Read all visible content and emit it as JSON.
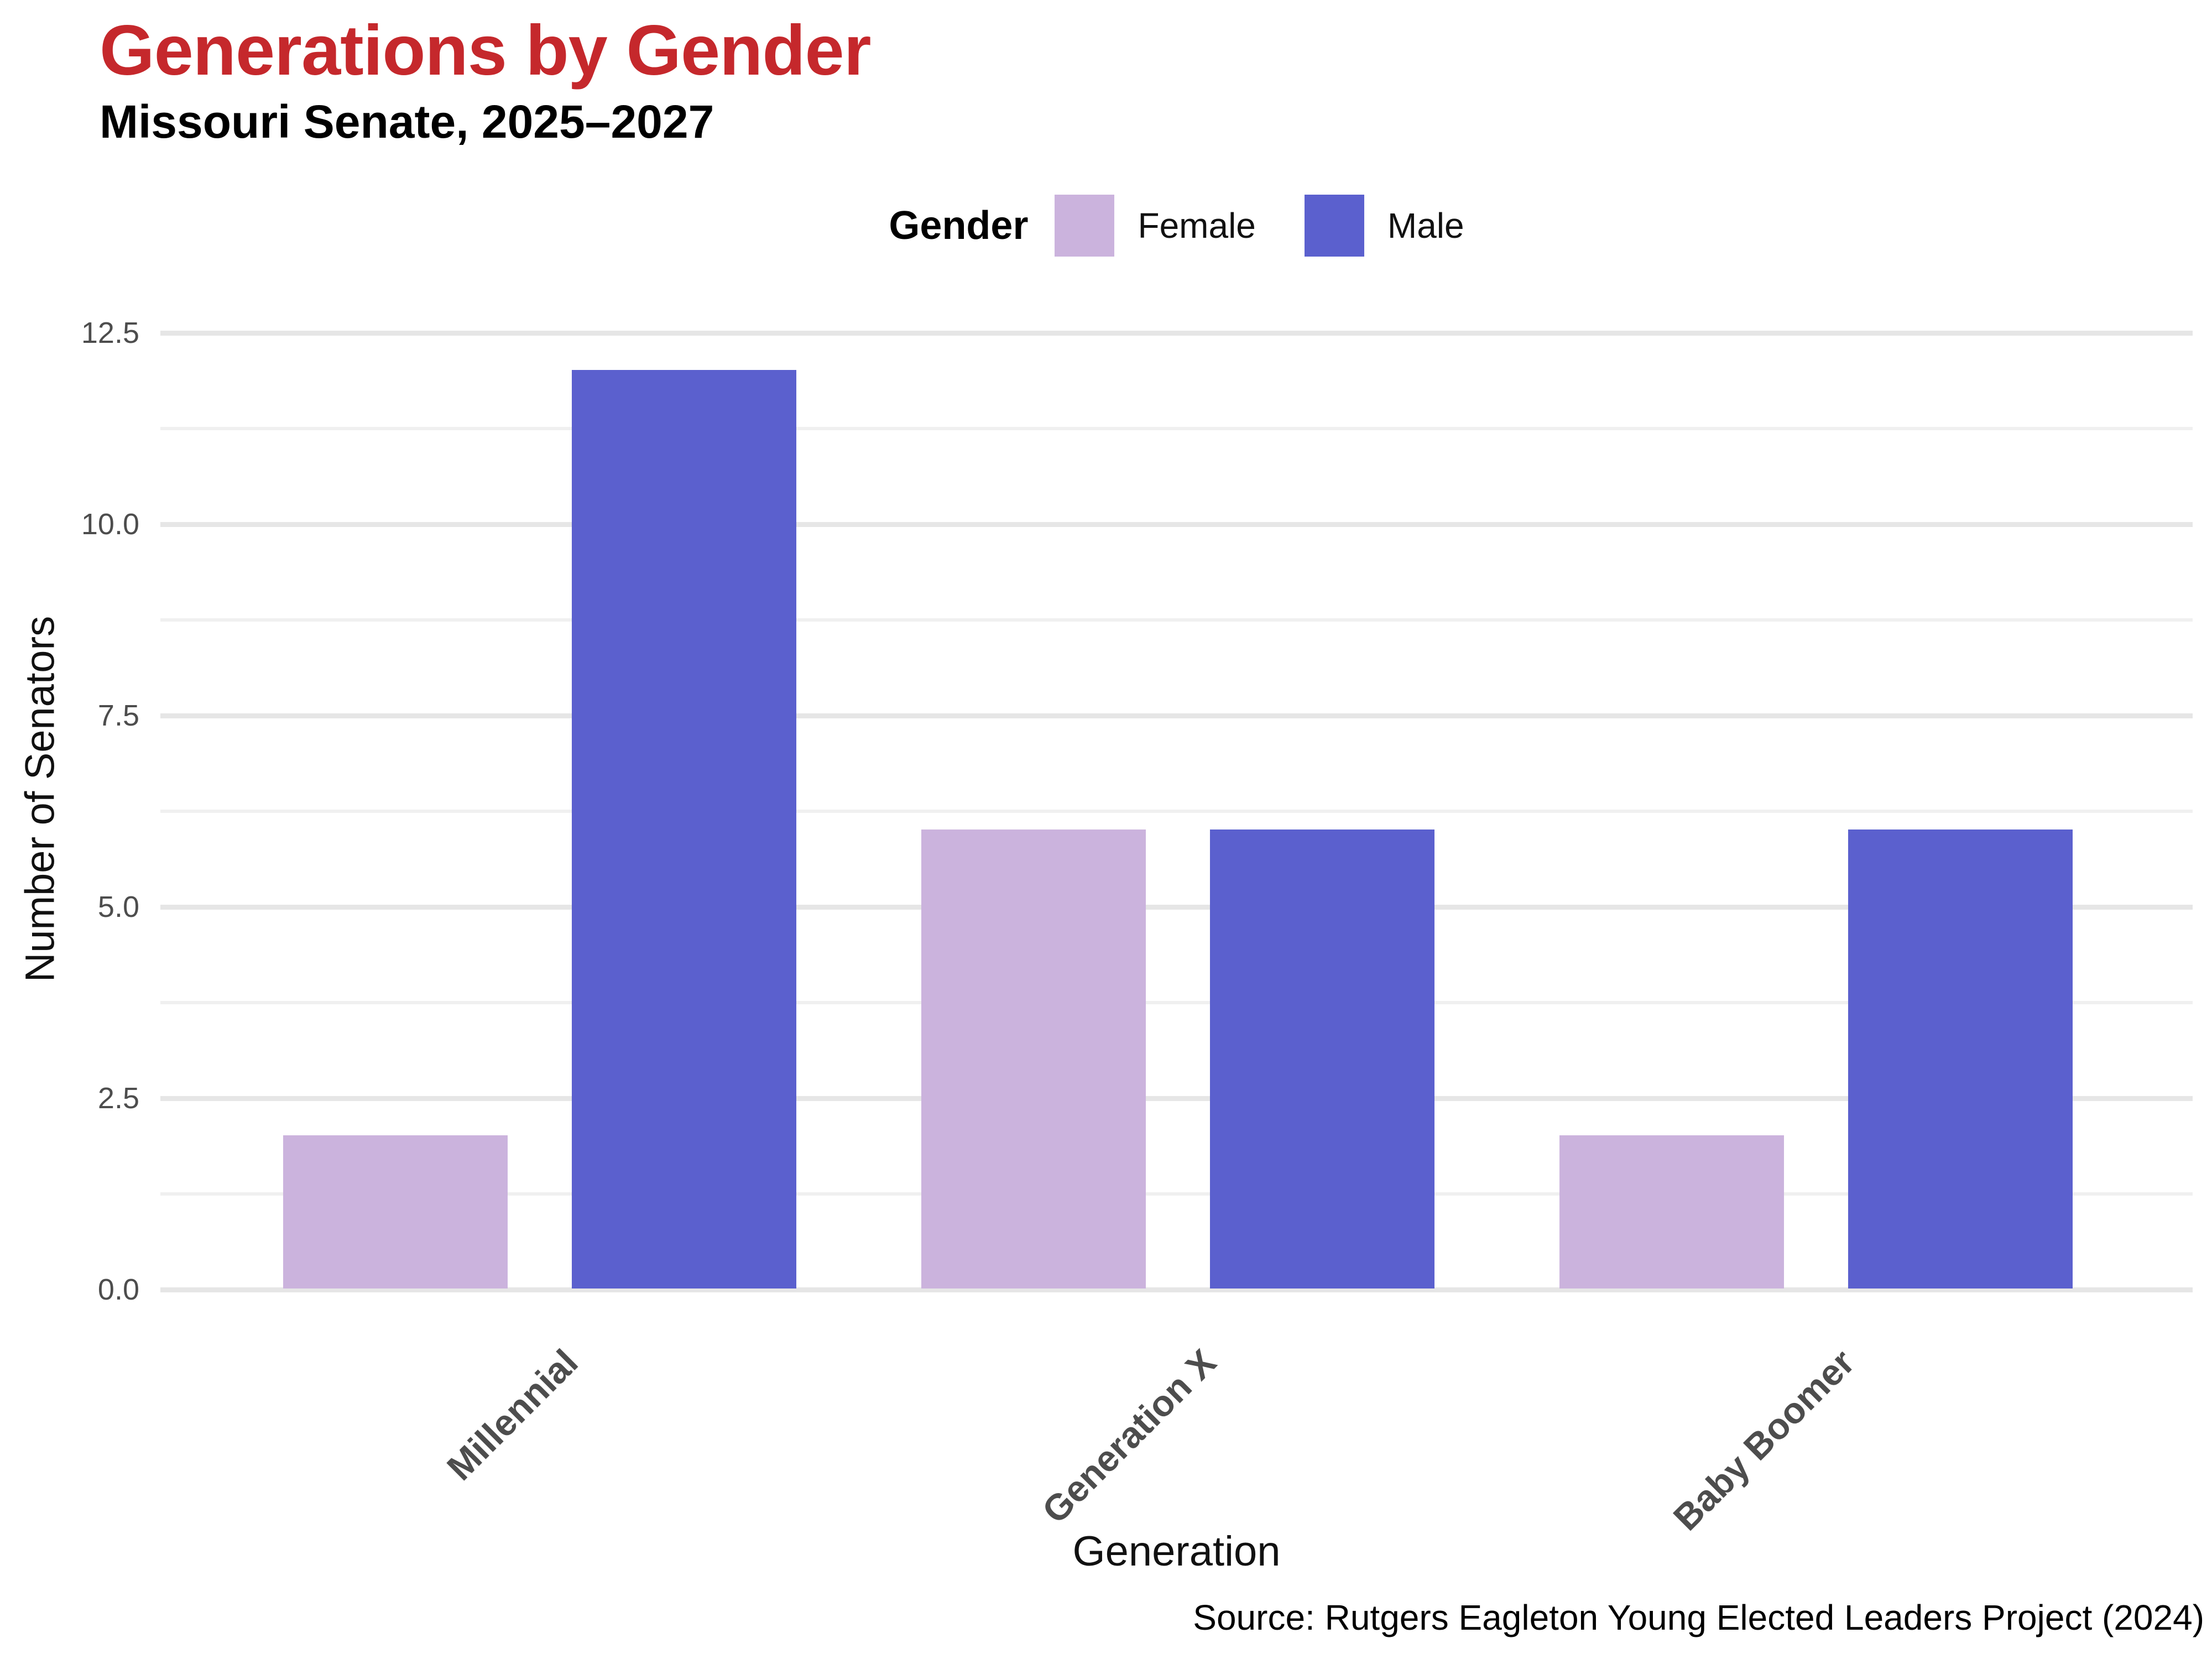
{
  "header": {
    "title": "Generations by Gender",
    "subtitle": "Missouri Senate, 2025–2027"
  },
  "legend": {
    "title": "Gender",
    "items": [
      {
        "label": "Female",
        "color": "#cbb3dd"
      },
      {
        "label": "Male",
        "color": "#5b60ce"
      }
    ]
  },
  "axes": {
    "x_title": "Generation",
    "y_title": "Number of Senators",
    "y_ticks": [
      "0.0",
      "2.5",
      "5.0",
      "7.5",
      "10.0",
      "12.5"
    ]
  },
  "footer": {
    "source": "Source: Rutgers Eagleton Young Elected Leaders Project (2024)"
  },
  "colors": {
    "title": "#c5282c",
    "grid_major": "#e6e6e6",
    "grid_minor": "#f0f0f0",
    "tick_label": "#4d4d4d",
    "female": "#cbb3dd",
    "male": "#5b60ce"
  },
  "chart_data": {
    "type": "bar",
    "title": "Generations by Gender",
    "subtitle": "Missouri Senate, 2025–2027",
    "categories": [
      "Millennial",
      "Generation X",
      "Baby Boomer"
    ],
    "series": [
      {
        "name": "Female",
        "color": "#cbb3dd",
        "values": [
          2,
          6,
          2
        ]
      },
      {
        "name": "Male",
        "color": "#5b60ce",
        "values": [
          12,
          6,
          6
        ]
      }
    ],
    "xlabel": "Generation",
    "ylabel": "Number of Senators",
    "ylim": [
      0,
      12.8
    ],
    "ytick_values": [
      0,
      2.5,
      5,
      7.5,
      10,
      12.5
    ],
    "minor_gridlines": true,
    "grid": true,
    "legend_title": "Gender",
    "legend_position": "top-center",
    "bar_label_rotation_deg": -45,
    "source": "Source: Rutgers Eagleton Young Elected Leaders Project (2024)"
  }
}
